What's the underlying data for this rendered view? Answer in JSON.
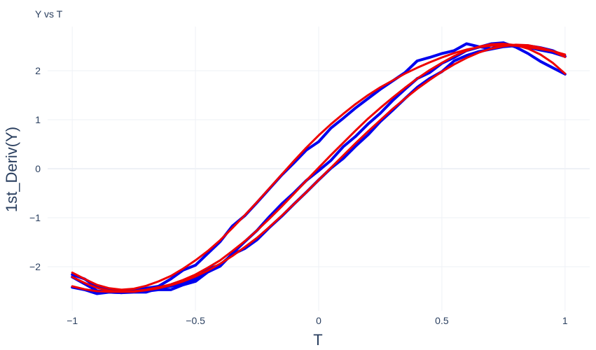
{
  "chart_data": {
    "type": "line",
    "title": "Y vs T",
    "xlabel": "T",
    "ylabel": "1st_Deriv(Y)",
    "xlim": [
      -1.1,
      1.1
    ],
    "ylim": [
      -2.9,
      2.9
    ],
    "x_ticks": [
      -1,
      -0.5,
      0,
      0.5,
      1
    ],
    "x_tick_labels": [
      "−1",
      "−0.5",
      "0",
      "0.5",
      "1"
    ],
    "y_ticks": [
      -2,
      -1,
      0,
      1,
      2
    ],
    "y_tick_labels": [
      "−2",
      "−1",
      "0",
      "1",
      "2"
    ],
    "grid": true,
    "legend": "none",
    "colors": {
      "noisy": "#0000ee",
      "smooth": "#ee0000",
      "grid": "#eef1f6",
      "text": "#2a3f5f"
    },
    "series": [
      {
        "color": "noisy",
        "x": [
          -1,
          -0.95,
          -0.9,
          -0.85,
          -0.8,
          -0.75,
          -0.7,
          -0.65,
          -0.6,
          -0.55,
          -0.5,
          -0.45,
          -0.4,
          -0.35,
          -0.3,
          -0.25,
          -0.2,
          -0.15,
          -0.1,
          -0.05,
          0,
          0.05,
          0.1,
          0.15,
          0.2,
          0.25,
          0.3,
          0.35,
          0.4,
          0.45,
          0.5,
          0.55,
          0.6,
          0.65,
          0.7,
          0.75,
          0.8,
          0.85,
          0.9,
          0.95,
          1
        ],
        "y": [
          -2.16,
          -2.25,
          -2.42,
          -2.47,
          -2.5,
          -2.48,
          -2.44,
          -2.4,
          -2.25,
          -2.07,
          -1.97,
          -1.73,
          -1.49,
          -1.17,
          -0.96,
          -0.69,
          -0.41,
          -0.13,
          0.12,
          0.38,
          0.55,
          0.83,
          1.03,
          1.24,
          1.43,
          1.62,
          1.79,
          1.96,
          2.2,
          2.27,
          2.35,
          2.41,
          2.55,
          2.49,
          2.45,
          2.53,
          2.51,
          2.48,
          2.42,
          2.37,
          2.29
        ]
      },
      {
        "color": "smooth",
        "x": [
          -1,
          -0.95,
          -0.9,
          -0.85,
          -0.8,
          -0.75,
          -0.7,
          -0.65,
          -0.6,
          -0.55,
          -0.5,
          -0.45,
          -0.4,
          -0.35,
          -0.3,
          -0.25,
          -0.2,
          -0.15,
          -0.1,
          -0.05,
          0,
          0.05,
          0.1,
          0.15,
          0.2,
          0.25,
          0.3,
          0.35,
          0.4,
          0.45,
          0.5,
          0.55,
          0.6,
          0.65,
          0.7,
          0.75,
          0.8,
          0.85,
          0.9,
          0.95,
          1
        ],
        "y": [
          -2.12,
          -2.25,
          -2.37,
          -2.44,
          -2.47,
          -2.45,
          -2.39,
          -2.3,
          -2.19,
          -2.04,
          -1.87,
          -1.68,
          -1.46,
          -1.21,
          -0.95,
          -0.68,
          -0.4,
          -0.12,
          0.16,
          0.43,
          0.68,
          0.91,
          1.12,
          1.32,
          1.5,
          1.66,
          1.8,
          1.94,
          2.06,
          2.17,
          2.27,
          2.36,
          2.43,
          2.48,
          2.51,
          2.52,
          2.51,
          2.48,
          2.44,
          2.4,
          2.33
        ]
      },
      {
        "color": "noisy",
        "x": [
          -1,
          -0.95,
          -0.9,
          -0.85,
          -0.8,
          -0.75,
          -0.7,
          -0.65,
          -0.6,
          -0.55,
          -0.5,
          -0.45,
          -0.4,
          -0.35,
          -0.3,
          -0.25,
          -0.2,
          -0.15,
          -0.1,
          -0.05,
          0,
          0.05,
          0.1,
          0.15,
          0.2,
          0.25,
          0.3,
          0.35,
          0.4,
          0.45,
          0.5,
          0.55,
          0.6,
          0.65,
          0.7,
          0.75,
          0.8,
          0.85,
          0.9,
          0.95,
          1
        ],
        "y": [
          -2.42,
          -2.47,
          -2.55,
          -2.52,
          -2.53,
          -2.5,
          -2.5,
          -2.47,
          -2.47,
          -2.37,
          -2.3,
          -2.11,
          -1.99,
          -1.73,
          -1.49,
          -1.26,
          -0.98,
          -0.72,
          -0.49,
          -0.24,
          -0.04,
          0.17,
          0.45,
          0.66,
          0.91,
          1.13,
          1.39,
          1.62,
          1.84,
          1.96,
          2.15,
          2.27,
          2.41,
          2.48,
          2.55,
          2.57,
          2.48,
          2.35,
          2.19,
          2.06,
          1.93
        ]
      },
      {
        "color": "smooth",
        "x": [
          -1,
          -0.95,
          -0.9,
          -0.85,
          -0.8,
          -0.75,
          -0.7,
          -0.65,
          -0.6,
          -0.55,
          -0.5,
          -0.45,
          -0.4,
          -0.35,
          -0.3,
          -0.25,
          -0.2,
          -0.15,
          -0.1,
          -0.05,
          0,
          0.05,
          0.1,
          0.15,
          0.2,
          0.25,
          0.3,
          0.35,
          0.4,
          0.45,
          0.5,
          0.55,
          0.6,
          0.65,
          0.7,
          0.75,
          0.8,
          0.85,
          0.9,
          0.95,
          1
        ],
        "y": [
          -2.4,
          -2.46,
          -2.5,
          -2.51,
          -2.51,
          -2.5,
          -2.47,
          -2.42,
          -2.36,
          -2.27,
          -2.16,
          -2.02,
          -1.87,
          -1.68,
          -1.48,
          -1.26,
          -1.02,
          -0.77,
          -0.51,
          -0.24,
          0.02,
          0.28,
          0.53,
          0.78,
          1.02,
          1.24,
          1.45,
          1.65,
          1.84,
          2.01,
          2.16,
          2.3,
          2.41,
          2.49,
          2.54,
          2.55,
          2.52,
          2.45,
          2.33,
          2.16,
          1.94
        ]
      },
      {
        "color": "noisy",
        "x": [
          -1,
          -0.95,
          -0.9,
          -0.85,
          -0.8,
          -0.75,
          -0.7,
          -0.65,
          -0.6,
          -0.55,
          -0.5,
          -0.45,
          -0.4,
          -0.35,
          -0.3,
          -0.25,
          -0.2,
          -0.15,
          -0.1,
          -0.05,
          0,
          0.05,
          0.1,
          0.15,
          0.2,
          0.25,
          0.3,
          0.35,
          0.4,
          0.45,
          0.5,
          0.55,
          0.6,
          0.65,
          0.7,
          0.75,
          0.8,
          0.85,
          0.9,
          0.95,
          1
        ],
        "y": [
          -2.21,
          -2.35,
          -2.49,
          -2.52,
          -2.53,
          -2.52,
          -2.52,
          -2.44,
          -2.4,
          -2.34,
          -2.25,
          -2.05,
          -1.96,
          -1.75,
          -1.63,
          -1.45,
          -1.2,
          -0.97,
          -0.72,
          -0.48,
          -0.23,
          0.01,
          0.21,
          0.46,
          0.69,
          0.96,
          1.19,
          1.43,
          1.66,
          1.84,
          1.98,
          2.2,
          2.31,
          2.39,
          2.44,
          2.49,
          2.51,
          2.51,
          2.47,
          2.41,
          2.29
        ]
      },
      {
        "color": "smooth",
        "x": [
          -1,
          -0.95,
          -0.9,
          -0.85,
          -0.8,
          -0.75,
          -0.7,
          -0.65,
          -0.6,
          -0.55,
          -0.5,
          -0.45,
          -0.4,
          -0.35,
          -0.3,
          -0.25,
          -0.2,
          -0.15,
          -0.1,
          -0.05,
          0,
          0.05,
          0.1,
          0.15,
          0.2,
          0.25,
          0.3,
          0.35,
          0.4,
          0.45,
          0.5,
          0.55,
          0.6,
          0.65,
          0.7,
          0.75,
          0.8,
          0.85,
          0.9,
          0.95,
          1
        ],
        "y": [
          -2.21,
          -2.33,
          -2.43,
          -2.49,
          -2.51,
          -2.51,
          -2.48,
          -2.44,
          -2.38,
          -2.3,
          -2.2,
          -2.08,
          -1.94,
          -1.78,
          -1.6,
          -1.41,
          -1.19,
          -0.96,
          -0.72,
          -0.48,
          -0.23,
          0.02,
          0.27,
          0.52,
          0.76,
          0.99,
          1.22,
          1.43,
          1.63,
          1.81,
          1.98,
          2.13,
          2.26,
          2.37,
          2.45,
          2.5,
          2.53,
          2.52,
          2.47,
          2.4,
          2.28
        ]
      }
    ]
  }
}
